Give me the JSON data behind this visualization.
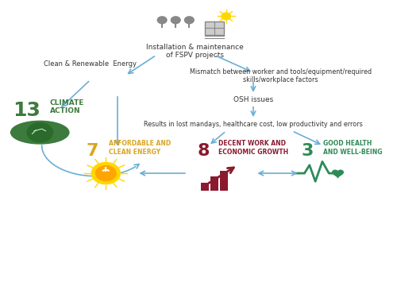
{
  "bg_color": "#ffffff",
  "arrow_color": "#6baed6",
  "text_color": "#333333",
  "top_label": "Installation & maintenance\nof FSPV projects",
  "left_branch_label": "Clean & Renewable  Energy",
  "right_branch_label": "Mismatch between worker and tools/equipment/required\nskills/workplace factors",
  "osh_label": "OSH issues",
  "result_label": "Results in lost mandays, healthcare cost, low productivity and errors",
  "sdg13_number": "13",
  "sdg13_text": "CLIMATE\nACTION",
  "sdg13_num_color": "#3d7a3d",
  "sdg13_text_color": "#3d7a3d",
  "sdg7_number": "7",
  "sdg7_text": "AFFORDABLE AND\nCLEAN ENERGY",
  "sdg7_num_color": "#daa520",
  "sdg7_text_color": "#daa520",
  "sdg8_number": "8",
  "sdg8_text": "DECENT WORK AND\nECONOMIC GROWTH",
  "sdg8_num_color": "#8b1a2f",
  "sdg8_text_color": "#8b1a2f",
  "sdg3_number": "3",
  "sdg3_text": "GOOD HEALTH\nAND WELL-BEING",
  "sdg3_num_color": "#2e8b57",
  "sdg3_text_color": "#2e8b57",
  "figsize": [
    5.0,
    3.7
  ],
  "dpi": 100
}
